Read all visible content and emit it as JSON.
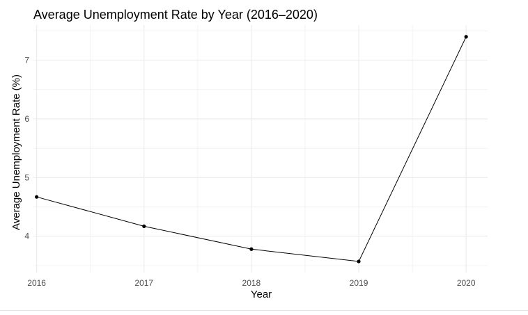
{
  "chart_data": {
    "type": "line",
    "title": "Average Unemployment Rate by Year (2016–2020)",
    "xlabel": "Year",
    "ylabel": "Average Unemployment Rate (%)",
    "x": [
      2016,
      2017,
      2018,
      2019,
      2020
    ],
    "x_tick_labels": [
      "2016",
      "2017",
      "2018",
      "2019",
      "2020"
    ],
    "y": [
      4.67,
      4.17,
      3.78,
      3.57,
      7.4
    ],
    "y_ticks": [
      4,
      5,
      6,
      7
    ],
    "y_tick_labels": [
      "4",
      "5",
      "6",
      "7"
    ],
    "xlim": [
      2015.97,
      2020.2
    ],
    "ylim": [
      3.38,
      7.6
    ],
    "grid": true,
    "legend": "none",
    "colors": {
      "line": "#000000",
      "point": "#000000",
      "grid": "#ebebeb",
      "tick_text": "#4d4d4d"
    }
  }
}
